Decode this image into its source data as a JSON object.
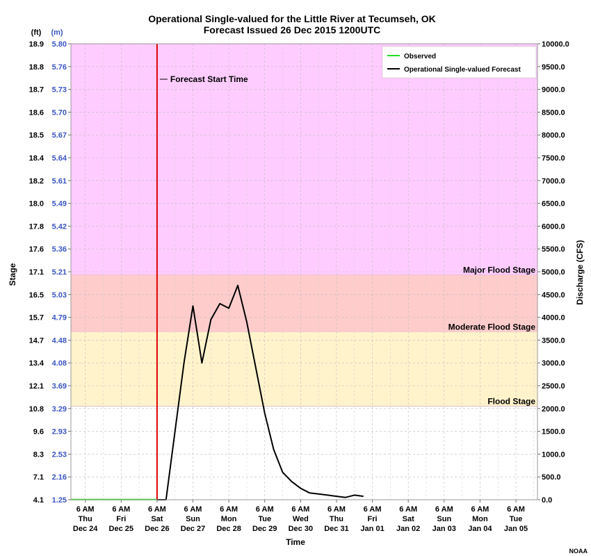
{
  "chart_data": {
    "type": "line",
    "title": "Operational Single-valued for the Little River at Tecumseh, OK",
    "subtitle": "Forecast Issued  26 Dec 2015 1200UTC",
    "xlabel": "Time",
    "ylabel_left": "Stage",
    "ylabel_right": "Discharge (CFS)",
    "left_unit_ft": "(ft)",
    "left_unit_m": "(m)",
    "credit": "NOAA",
    "x_ticks": [
      {
        "l1": "6 AM",
        "l2": "Thu",
        "l3": "Dec 24"
      },
      {
        "l1": "6 AM",
        "l2": "Fri",
        "l3": "Dec 25"
      },
      {
        "l1": "6 AM",
        "l2": "Sat",
        "l3": "Dec 26"
      },
      {
        "l1": "6 AM",
        "l2": "Sun",
        "l3": "Dec 27"
      },
      {
        "l1": "6 AM",
        "l2": "Mon",
        "l3": "Dec 28"
      },
      {
        "l1": "6 AM",
        "l2": "Tue",
        "l3": "Dec 29"
      },
      {
        "l1": "6 AM",
        "l2": "Wed",
        "l3": "Dec 30"
      },
      {
        "l1": "6 AM",
        "l2": "Thu",
        "l3": "Dec 31"
      },
      {
        "l1": "6 AM",
        "l2": "Fri",
        "l3": "Jan 01"
      },
      {
        "l1": "6 AM",
        "l2": "Sat",
        "l3": "Jan 02"
      },
      {
        "l1": "6 AM",
        "l2": "Sun",
        "l3": "Jan 03"
      },
      {
        "l1": "6 AM",
        "l2": "Mon",
        "l3": "Jan 04"
      },
      {
        "l1": "6 AM",
        "l2": "Tue",
        "l3": "Jan 05"
      }
    ],
    "xlim_days": [
      -0.4,
      12.6
    ],
    "ylim_right": [
      0,
      10000
    ],
    "right_ticks": [
      "0.0",
      "500.0",
      "1000.0",
      "1500.0",
      "2000.0",
      "2500.0",
      "3000.0",
      "3500.0",
      "4000.0",
      "4500.0",
      "5000.0",
      "5500.0",
      "6000.0",
      "6500.0",
      "7000.0",
      "7500.0",
      "8000.0",
      "8500.0",
      "9000.0",
      "9500.0",
      "10000.0"
    ],
    "left_ticks_ft": [
      "4.1",
      "7.1",
      "8.3",
      "9.6",
      "10.8",
      "12.1",
      "13.4",
      "14.7",
      "15.7",
      "16.5",
      "17.1",
      "17.6",
      "17.8",
      "18.0",
      "18.2",
      "18.4",
      "18.5",
      "18.6",
      "18.7",
      "18.8",
      "18.9"
    ],
    "left_ticks_m": [
      "1.25",
      "2.16",
      "2.53",
      "2.93",
      "3.29",
      "3.69",
      "4.08",
      "4.48",
      "4.79",
      "5.03",
      "5.21",
      "5.36",
      "5.42",
      "5.49",
      "5.61",
      "5.64",
      "5.67",
      "5.70",
      "5.73",
      "5.76",
      "5.80"
    ],
    "flood_zones": [
      {
        "name": "Major Flood Stage",
        "from": 4930,
        "to": 10000,
        "color": "#ffccff"
      },
      {
        "name": "Moderate Flood Stage",
        "from": 3680,
        "to": 4930,
        "color": "#ffcccc"
      },
      {
        "name": "Flood Stage",
        "from": 2050,
        "to": 3680,
        "color": "#fff3cc"
      }
    ],
    "forecast_start": {
      "label": "Forecast Start Time",
      "x_day": 2,
      "color": "#dd0000"
    },
    "series": [
      {
        "name": "Observed",
        "color": "#22dd22",
        "points": [
          [
            -0.4,
            5
          ],
          [
            2.0,
            5
          ]
        ]
      },
      {
        "name": "Operational Single-valued Forecast",
        "color": "#000000",
        "points": [
          [
            2.0,
            0
          ],
          [
            2.25,
            0
          ],
          [
            2.5,
            1500
          ],
          [
            2.75,
            3000
          ],
          [
            3.0,
            4250
          ],
          [
            3.25,
            3000
          ],
          [
            3.5,
            3950
          ],
          [
            3.75,
            4300
          ],
          [
            4.0,
            4200
          ],
          [
            4.25,
            4700
          ],
          [
            4.5,
            3900
          ],
          [
            4.75,
            2900
          ],
          [
            5.0,
            1900
          ],
          [
            5.25,
            1100
          ],
          [
            5.5,
            600
          ],
          [
            5.75,
            400
          ],
          [
            6.0,
            250
          ],
          [
            6.25,
            150
          ],
          [
            6.5,
            125
          ],
          [
            6.75,
            100
          ],
          [
            7.0,
            75
          ],
          [
            7.25,
            50
          ],
          [
            7.5,
            100
          ],
          [
            7.75,
            75
          ]
        ]
      }
    ]
  }
}
